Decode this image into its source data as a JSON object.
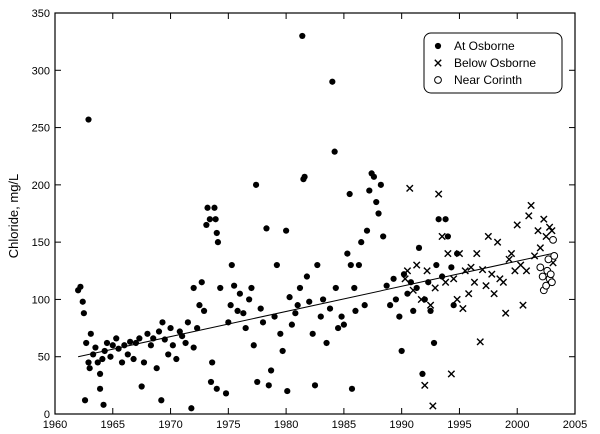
{
  "chart_data": {
    "type": "scatter",
    "title": "",
    "xlabel": "",
    "ylabel": "Chloride, mg/L",
    "xlim": [
      1960,
      2005
    ],
    "ylim": [
      0,
      350
    ],
    "x_ticks": [
      1960,
      1965,
      1970,
      1975,
      1980,
      1985,
      1990,
      1995,
      2000,
      2005
    ],
    "y_ticks": [
      0,
      50,
      100,
      150,
      200,
      250,
      300,
      350
    ],
    "legend_position": "top-right",
    "grid": false,
    "series": [
      {
        "name": "At Osborne",
        "marker": "filled-circle",
        "points": [
          [
            1962.0,
            108
          ],
          [
            1962.2,
            111
          ],
          [
            1962.4,
            98
          ],
          [
            1962.5,
            88
          ],
          [
            1962.7,
            62
          ],
          [
            1962.9,
            45
          ],
          [
            1963.0,
            40
          ],
          [
            1962.9,
            257
          ],
          [
            1963.1,
            70
          ],
          [
            1963.3,
            52
          ],
          [
            1963.5,
            58
          ],
          [
            1963.7,
            45
          ],
          [
            1963.9,
            35
          ],
          [
            1964.1,
            48
          ],
          [
            1962.6,
            12
          ],
          [
            1963.9,
            22
          ],
          [
            1964.2,
            8
          ],
          [
            1964.3,
            55
          ],
          [
            1964.5,
            62
          ],
          [
            1964.8,
            50
          ],
          [
            1965.0,
            60
          ],
          [
            1965.3,
            66
          ],
          [
            1965.5,
            57
          ],
          [
            1965.8,
            45
          ],
          [
            1966.0,
            60
          ],
          [
            1966.3,
            52
          ],
          [
            1966.5,
            63
          ],
          [
            1966.8,
            48
          ],
          [
            1967.0,
            62
          ],
          [
            1967.3,
            66
          ],
          [
            1967.5,
            24
          ],
          [
            1967.7,
            45
          ],
          [
            1968.0,
            70
          ],
          [
            1968.3,
            60
          ],
          [
            1968.5,
            66
          ],
          [
            1968.8,
            40
          ],
          [
            1969.0,
            72
          ],
          [
            1969.2,
            12
          ],
          [
            1969.3,
            80
          ],
          [
            1969.5,
            65
          ],
          [
            1969.8,
            52
          ],
          [
            1970.0,
            75
          ],
          [
            1970.2,
            60
          ],
          [
            1970.5,
            48
          ],
          [
            1970.8,
            72
          ],
          [
            1971.0,
            68
          ],
          [
            1971.3,
            62
          ],
          [
            1971.5,
            80
          ],
          [
            1971.8,
            5
          ],
          [
            1972.0,
            58
          ],
          [
            1972.0,
            110
          ],
          [
            1972.3,
            75
          ],
          [
            1972.5,
            95
          ],
          [
            1972.7,
            115
          ],
          [
            1972.9,
            90
          ],
          [
            1973.1,
            165
          ],
          [
            1973.2,
            180
          ],
          [
            1973.4,
            170
          ],
          [
            1973.5,
            28
          ],
          [
            1973.6,
            45
          ],
          [
            1973.8,
            180
          ],
          [
            1973.9,
            170
          ],
          [
            1974.0,
            158
          ],
          [
            1974.0,
            22
          ],
          [
            1974.1,
            150
          ],
          [
            1974.3,
            110
          ],
          [
            1974.8,
            18
          ],
          [
            1975.0,
            80
          ],
          [
            1975.2,
            95
          ],
          [
            1975.3,
            130
          ],
          [
            1975.5,
            112
          ],
          [
            1975.8,
            90
          ],
          [
            1976.0,
            105
          ],
          [
            1976.3,
            88
          ],
          [
            1976.5,
            75
          ],
          [
            1976.8,
            100
          ],
          [
            1977.0,
            110
          ],
          [
            1977.2,
            60
          ],
          [
            1977.4,
            200
          ],
          [
            1977.5,
            28
          ],
          [
            1977.8,
            92
          ],
          [
            1978.0,
            80
          ],
          [
            1978.3,
            162
          ],
          [
            1978.5,
            25
          ],
          [
            1978.7,
            38
          ],
          [
            1979.0,
            85
          ],
          [
            1979.2,
            130
          ],
          [
            1979.5,
            70
          ],
          [
            1979.7,
            55
          ],
          [
            1980.0,
            160
          ],
          [
            1980.1,
            20
          ],
          [
            1980.3,
            102
          ],
          [
            1980.5,
            78
          ],
          [
            1980.8,
            88
          ],
          [
            1981.0,
            95
          ],
          [
            1981.2,
            110
          ],
          [
            1981.4,
            330
          ],
          [
            1981.5,
            205
          ],
          [
            1981.6,
            207
          ],
          [
            1981.8,
            120
          ],
          [
            1982.0,
            98
          ],
          [
            1982.3,
            70
          ],
          [
            1982.5,
            25
          ],
          [
            1982.7,
            130
          ],
          [
            1983.0,
            85
          ],
          [
            1983.2,
            100
          ],
          [
            1983.5,
            62
          ],
          [
            1983.8,
            92
          ],
          [
            1984.0,
            290
          ],
          [
            1984.2,
            229
          ],
          [
            1984.3,
            110
          ],
          [
            1984.5,
            75
          ],
          [
            1984.8,
            85
          ],
          [
            1985.0,
            78
          ],
          [
            1985.3,
            140
          ],
          [
            1985.5,
            192
          ],
          [
            1985.6,
            130
          ],
          [
            1985.7,
            22
          ],
          [
            1985.9,
            110
          ],
          [
            1986.0,
            90
          ],
          [
            1986.3,
            130
          ],
          [
            1986.5,
            150
          ],
          [
            1986.8,
            95
          ],
          [
            1987.0,
            160
          ],
          [
            1987.2,
            195
          ],
          [
            1987.4,
            210
          ],
          [
            1987.6,
            207
          ],
          [
            1987.8,
            185
          ],
          [
            1988.0,
            175
          ],
          [
            1988.2,
            200
          ],
          [
            1988.4,
            155
          ],
          [
            1988.7,
            112
          ],
          [
            1989.0,
            95
          ],
          [
            1989.3,
            118
          ],
          [
            1989.5,
            100
          ],
          [
            1989.8,
            85
          ],
          [
            1990.0,
            55
          ],
          [
            1990.2,
            122
          ],
          [
            1990.5,
            105
          ],
          [
            1990.8,
            115
          ],
          [
            1991.0,
            90
          ],
          [
            1991.3,
            110
          ],
          [
            1991.5,
            145
          ],
          [
            1991.8,
            35
          ],
          [
            1992.0,
            100
          ],
          [
            1992.3,
            115
          ],
          [
            1992.5,
            90
          ],
          [
            1992.8,
            62
          ],
          [
            1993.0,
            130
          ],
          [
            1993.2,
            170
          ],
          [
            1993.5,
            120
          ],
          [
            1993.8,
            170
          ],
          [
            1994.0,
            155
          ],
          [
            1994.3,
            128
          ],
          [
            1994.5,
            95
          ],
          [
            1994.8,
            140
          ]
        ]
      },
      {
        "name": "Below Osborne",
        "marker": "x",
        "points": [
          [
            1990.3,
            118
          ],
          [
            1990.5,
            125
          ],
          [
            1990.7,
            197
          ],
          [
            1991.0,
            108
          ],
          [
            1991.3,
            130
          ],
          [
            1991.7,
            100
          ],
          [
            1992.0,
            25
          ],
          [
            1992.2,
            125
          ],
          [
            1992.5,
            95
          ],
          [
            1992.7,
            7
          ],
          [
            1992.9,
            110
          ],
          [
            1993.2,
            192
          ],
          [
            1993.5,
            155
          ],
          [
            1993.8,
            115
          ],
          [
            1994.0,
            140
          ],
          [
            1994.3,
            35
          ],
          [
            1994.5,
            118
          ],
          [
            1994.8,
            100
          ],
          [
            1995.0,
            140
          ],
          [
            1995.3,
            92
          ],
          [
            1995.5,
            125
          ],
          [
            1995.8,
            105
          ],
          [
            1996.0,
            128
          ],
          [
            1996.3,
            115
          ],
          [
            1996.5,
            140
          ],
          [
            1996.8,
            63
          ],
          [
            1997.0,
            126
          ],
          [
            1997.3,
            112
          ],
          [
            1997.5,
            155
          ],
          [
            1997.8,
            122
          ],
          [
            1998.0,
            105
          ],
          [
            1998.3,
            150
          ],
          [
            1998.5,
            118
          ],
          [
            1998.8,
            115
          ],
          [
            1999.0,
            88
          ],
          [
            1999.3,
            135
          ],
          [
            1999.5,
            140
          ],
          [
            1999.8,
            125
          ],
          [
            2000.0,
            165
          ],
          [
            2000.3,
            130
          ],
          [
            2000.5,
            95
          ],
          [
            2000.8,
            125
          ],
          [
            2001.0,
            173
          ],
          [
            2001.2,
            182
          ],
          [
            2001.5,
            138
          ],
          [
            2001.8,
            160
          ],
          [
            2002.0,
            145
          ],
          [
            2002.3,
            170
          ],
          [
            2002.5,
            155
          ],
          [
            2002.8,
            163
          ],
          [
            2003.0,
            160
          ],
          [
            2003.1,
            132
          ]
        ]
      },
      {
        "name": "Near Corinth",
        "marker": "open-circle",
        "points": [
          [
            2002.0,
            128
          ],
          [
            2002.2,
            120
          ],
          [
            2002.3,
            108
          ],
          [
            2002.5,
            112
          ],
          [
            2002.6,
            125
          ],
          [
            2002.7,
            135
          ],
          [
            2002.8,
            118
          ],
          [
            2002.9,
            122
          ],
          [
            2003.0,
            115
          ],
          [
            2003.1,
            152
          ],
          [
            2003.2,
            138
          ]
        ]
      }
    ],
    "trend_line": {
      "points": [
        [
          1962.0,
          50
        ],
        [
          2003.0,
          140
        ]
      ]
    }
  }
}
